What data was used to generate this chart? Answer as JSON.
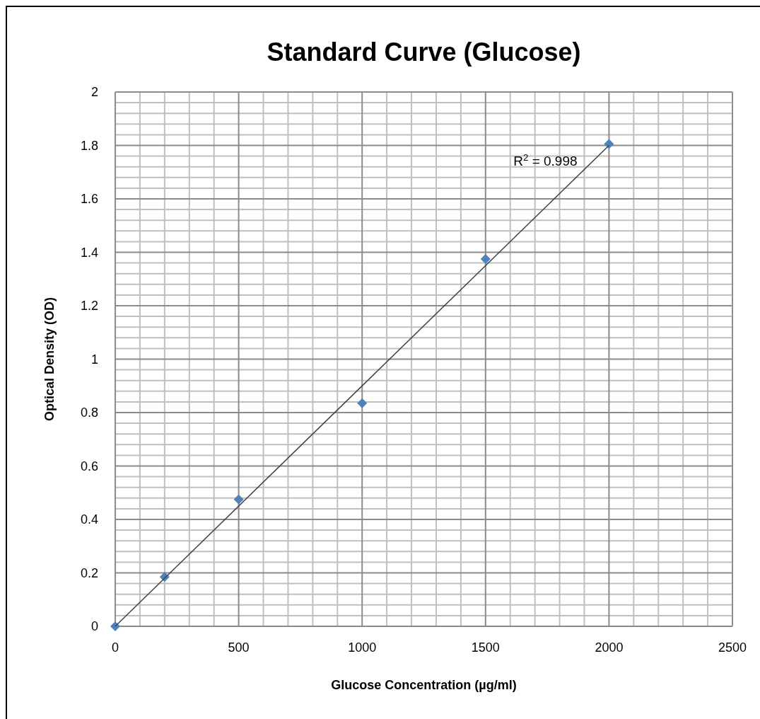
{
  "chart_data": {
    "type": "scatter",
    "title": "Standard Curve (Glucose)",
    "xlabel": "Glucose Concentration (µg/ml)",
    "ylabel": "Optical Density (OD)",
    "x": [
      0,
      200,
      500,
      1000,
      1500,
      2000
    ],
    "series": [
      {
        "color": "#4f81bd",
        "values": [
          0,
          0.185,
          0.475,
          0.835,
          1.375,
          1.805
        ],
        "marker": "diamond"
      },
      {
        "type": "line",
        "color": "#404040",
        "x": [
          0,
          2000
        ],
        "values": [
          0,
          1.8
        ],
        "marker": "none"
      }
    ],
    "xlim": [
      0,
      2500
    ],
    "xticks": [
      0,
      500,
      1000,
      1500,
      2000,
      2500
    ],
    "ylim": [
      0,
      2
    ],
    "yticks": [
      0,
      0.2,
      0.4,
      0.6,
      0.8,
      1,
      1.2,
      1.4,
      1.6,
      1.8,
      2
    ],
    "grid": true,
    "annotations": [
      "R$^{2}$ = 0.998"
    ]
  }
}
